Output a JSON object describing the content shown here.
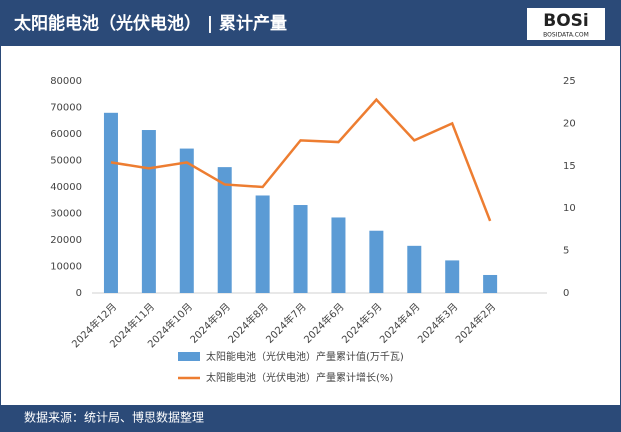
{
  "chart_data": {
    "type": "bar-line",
    "title": "太阳能电池（光伏电池） | 累计产量",
    "source": "数据来源：统计局、博思数据整理",
    "logo": {
      "text": "BOSi",
      "url": "BOSIDATA.COM"
    },
    "categories": [
      "2024年12月",
      "2024年11月",
      "2024年10月",
      "2024年9月",
      "2024年8月",
      "2024年7月",
      "2024年6月",
      "2024年5月",
      "2024年4月",
      "2024年3月",
      "2024年2月",
      null
    ],
    "series": [
      {
        "name": "太阳能电池（光伏电池）产量累计值(万千瓦)",
        "color": "#5b9bd5",
        "type": "bar",
        "values": [
          68000,
          61500,
          54500,
          47500,
          36800,
          33200,
          28500,
          23500,
          17800,
          12300,
          6800,
          null
        ]
      },
      {
        "name": "太阳能电池（光伏电池）产量累计增长(%)",
        "color": "#ed7d31",
        "type": "line",
        "axis": "y2",
        "values": [
          15.4,
          14.7,
          15.4,
          12.8,
          12.5,
          18.0,
          17.8,
          22.8,
          18.0,
          20.0,
          8.5,
          null
        ]
      }
    ],
    "ylim": [
      0,
      80000
    ],
    "yticks": [
      0,
      10000,
      20000,
      30000,
      40000,
      50000,
      60000,
      70000,
      80000
    ],
    "y2lim": [
      0,
      25
    ],
    "y2ticks": [
      0,
      5,
      10,
      15,
      20,
      25
    ]
  }
}
